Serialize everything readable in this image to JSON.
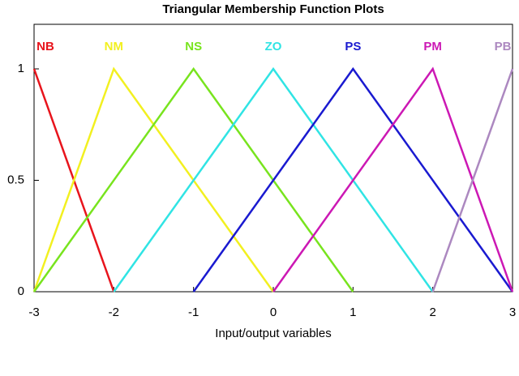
{
  "chart_data": {
    "type": "line",
    "title": "Triangular Membership Function Plots",
    "x_label": "Input/output variables",
    "xlim": [
      -3,
      3
    ],
    "xticks": [
      -3,
      -2,
      -1,
      0,
      1,
      2,
      3
    ],
    "ylim": [
      0,
      1.2
    ],
    "yticks": [
      0,
      0.5,
      1
    ],
    "series": [
      {
        "name": "NB",
        "color": "#e8141c",
        "x": [
          -3,
          -2
        ],
        "values": [
          1,
          0
        ]
      },
      {
        "name": "NM",
        "color": "#f2f020",
        "x": [
          -3,
          -2,
          0
        ],
        "values": [
          0,
          1,
          0
        ]
      },
      {
        "name": "NS",
        "color": "#78e41e",
        "x": [
          -3,
          -1,
          1
        ],
        "values": [
          0,
          1,
          0
        ]
      },
      {
        "name": "ZO",
        "color": "#30e4e4",
        "x": [
          -2,
          0,
          2
        ],
        "values": [
          0,
          1,
          0
        ]
      },
      {
        "name": "PS",
        "color": "#1a1ad0",
        "x": [
          -1,
          1,
          3
        ],
        "values": [
          0,
          1,
          0
        ]
      },
      {
        "name": "PM",
        "color": "#cc18b4",
        "x": [
          0,
          2,
          3
        ],
        "values": [
          0,
          1,
          0
        ]
      },
      {
        "name": "PB",
        "color": "#ac88c0",
        "x": [
          2,
          3
        ],
        "values": [
          0,
          1
        ]
      }
    ]
  }
}
